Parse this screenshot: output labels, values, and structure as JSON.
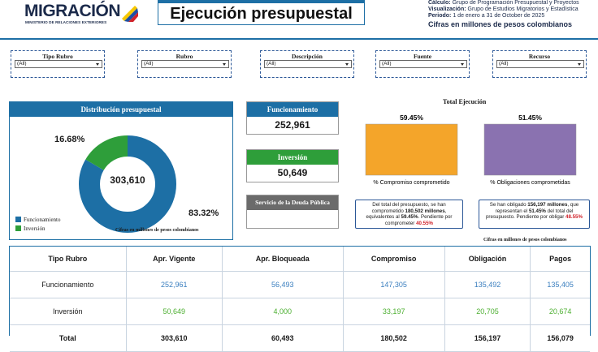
{
  "header": {
    "logo_text": "MIGRACIÓN",
    "logo_subtitle": "MINISTERIO DE RELACIONES EXTERIORES",
    "title": "Ejecución presupuestal",
    "info": {
      "calculo_label": "Cálculo:",
      "calculo_value": "Grupo de Programación Presupuestal y Proyectos",
      "visualizacion_label": "Visualización:",
      "visualizacion_value": "Grupo de Estudios Migratorios y Estadística",
      "periodo_label": "Periodo:",
      "periodo_value": "1 de enero a 31 de October de 2025",
      "cifras": "Cifras en millones de pesos colombianos"
    }
  },
  "filters": [
    {
      "label": "Tipo Rubro",
      "value": "(All)"
    },
    {
      "label": "Rubro",
      "value": "(All)"
    },
    {
      "label": "Descripción",
      "value": "(All)"
    },
    {
      "label": "Fuente",
      "value": "(All)"
    },
    {
      "label": "Recurso",
      "value": "(All)"
    }
  ],
  "distribution": {
    "title": "Distribución presupuestal",
    "total": "303,610",
    "pct_inversion": "16.68%",
    "pct_funcionamiento": "83.32%",
    "legend": [
      "Funcionamiento",
      "Inversión"
    ],
    "note": "Cifras en millones de pesos colombianos"
  },
  "chart_data": [
    {
      "type": "pie",
      "title": "Distribución presupuestal",
      "categories": [
        "Funcionamiento",
        "Inversión"
      ],
      "values": [
        83.32,
        16.68
      ],
      "total_label": "303,610"
    },
    {
      "type": "bar",
      "title": "Total Ejecución",
      "categories": [
        "% Compromiso comprometido",
        "% Obligaciones comprometidas"
      ],
      "values": [
        59.45,
        51.45
      ],
      "ylim": [
        0,
        100
      ]
    }
  ],
  "kpis": [
    {
      "label": "Funcionamiento",
      "value": "252,961"
    },
    {
      "label": "Inversión",
      "value": "50,649"
    },
    {
      "label": "Servicio de la Deuda Pública",
      "value": ""
    }
  ],
  "execution": {
    "title": "Total Ejecución",
    "bars": [
      {
        "pct": "59.45%",
        "label": "% Compromiso comprometido"
      },
      {
        "pct": "51.45%",
        "label": "% Obligaciones comprometidas"
      }
    ],
    "msg1": {
      "a": "Del total del presupuesto, se han comprometido ",
      "b": "180,502 millones",
      "c": ", equivalentes al ",
      "d": "59.45%",
      "e": ". Pendiente por comprometer ",
      "f": "40.55%"
    },
    "msg2": {
      "a": "Se han obligado ",
      "b": "156,197 millones",
      "c": ", que representan el ",
      "d": "51.45%",
      "e": " del total del presupuesto. Pendiente por obligar ",
      "f": "48.55%"
    },
    "note": "Cifras en millones de pesos colombianos"
  },
  "colors": {
    "primary": "#1d6fa5",
    "green": "#2e9e3a",
    "gray": "#6b6b6b",
    "orange": "#f4a52a",
    "purple": "#8a72b0",
    "red": "#d0222a"
  },
  "table": {
    "headers": [
      "Tipo Rubro",
      "Apr. Vigente",
      "Apr. Bloqueada",
      "Compromiso",
      "Obligación",
      "Pagos"
    ],
    "rows": [
      [
        "Funcionamiento",
        "252,961",
        "56,493",
        "147,305",
        "135,492",
        "135,405"
      ],
      [
        "Inversión",
        "50,649",
        "4,000",
        "33,197",
        "20,705",
        "20,674"
      ],
      [
        "Total",
        "303,610",
        "60,493",
        "180,502",
        "156,197",
        "156,079"
      ]
    ]
  }
}
